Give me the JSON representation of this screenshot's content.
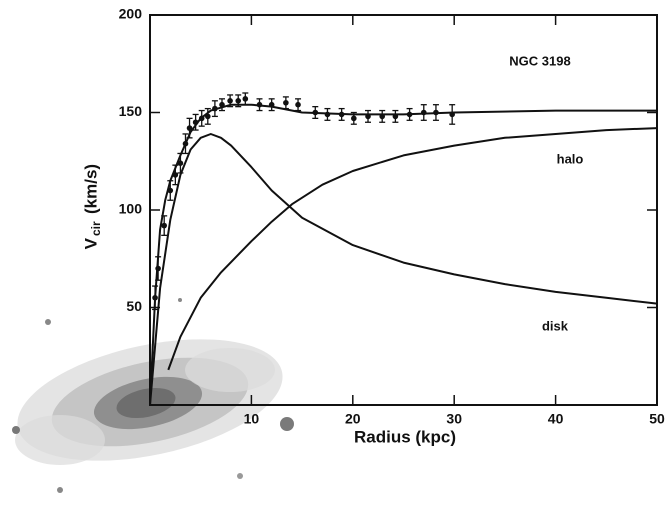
{
  "chart_data": {
    "type": "line",
    "annotation": "NGC 3198",
    "xlabel": "Radius  (kpc)",
    "ylabel": "V",
    "ylabel_sub": "cir",
    "ylabel_unit": "(km/s)",
    "xlim": [
      0,
      50
    ],
    "ylim": [
      0,
      200
    ],
    "xticks": [
      10,
      20,
      30,
      40,
      50
    ],
    "yticks": [
      50,
      100,
      150,
      200
    ],
    "color": "#111111",
    "series": [
      {
        "type": "scatter",
        "color": "#111111",
        "x": [
          0.5,
          0.8,
          1.4,
          2.0,
          2.5,
          3.0,
          3.5,
          3.9,
          4.5,
          5.1,
          5.7,
          6.4,
          7.1,
          7.9,
          8.7,
          9.4,
          10.8,
          12.0,
          13.4,
          14.6,
          16.3,
          17.5,
          18.9,
          20.1,
          21.5,
          22.9,
          24.2,
          25.6,
          27.0,
          28.2,
          29.8
        ],
        "values": [
          55,
          70,
          92,
          110,
          118,
          124,
          134,
          142,
          145,
          147,
          148,
          152,
          154,
          156,
          156,
          157,
          154,
          154,
          155,
          154,
          150,
          149,
          149,
          147,
          148,
          148,
          148,
          149,
          150,
          150,
          149
        ],
        "errors": [
          6,
          6,
          5,
          5,
          5,
          5,
          5,
          5,
          4,
          4,
          4,
          4,
          3,
          3,
          3,
          3,
          3,
          3,
          3,
          3,
          3,
          3,
          3,
          3,
          3,
          3,
          3,
          3,
          4,
          4,
          5
        ]
      },
      {
        "type": "line",
        "color": "#111111",
        "x": [
          0,
          0.5,
          1,
          1.5,
          2,
          3,
          4,
          5,
          6,
          8,
          10,
          12,
          15,
          20,
          25,
          30,
          40,
          50
        ],
        "values": [
          0,
          55,
          90,
          105,
          115,
          128,
          140,
          147,
          151,
          154,
          154,
          153,
          150,
          149,
          149,
          150,
          151,
          151
        ]
      },
      {
        "type": "line",
        "color": "#111111",
        "name": "disk",
        "x": [
          0,
          1,
          2,
          3,
          4,
          5,
          6,
          7,
          8,
          10,
          12,
          15,
          20,
          25,
          30,
          35,
          40,
          45,
          50
        ],
        "values": [
          0,
          60,
          95,
          118,
          131,
          137,
          139,
          137,
          133,
          122,
          110,
          96,
          82,
          73,
          67,
          62,
          58,
          55,
          52
        ]
      },
      {
        "type": "line",
        "color": "#111111",
        "name": "halo",
        "x": [
          1.8,
          3,
          5,
          7,
          10,
          12,
          14,
          17,
          20,
          25,
          30,
          35,
          40,
          45,
          50
        ],
        "values": [
          18,
          35,
          55,
          68,
          84,
          94,
          103,
          113,
          120,
          128,
          133,
          137,
          139,
          141,
          142
        ]
      }
    ]
  }
}
